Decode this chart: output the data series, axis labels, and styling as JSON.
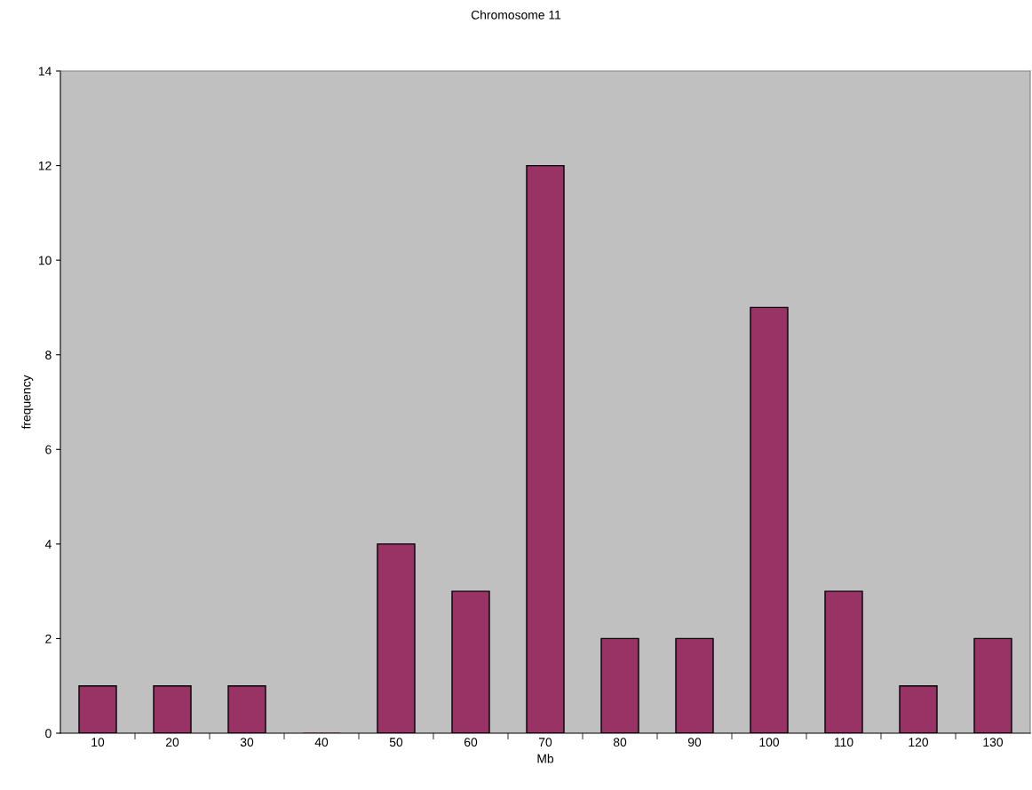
{
  "chart_data": {
    "type": "bar",
    "title": "Chromosome 11",
    "xlabel": "Mb",
    "ylabel": "frequency",
    "categories": [
      "10",
      "20",
      "30",
      "40",
      "50",
      "60",
      "70",
      "80",
      "90",
      "100",
      "110",
      "120",
      "130"
    ],
    "values": [
      1,
      1,
      1,
      0,
      4,
      3,
      12,
      2,
      2,
      9,
      3,
      1,
      2
    ],
    "color": "#993366",
    "ylim": [
      0,
      14
    ],
    "yticks": [
      0,
      2,
      4,
      6,
      8,
      10,
      12,
      14
    ],
    "grid": false,
    "legend": false
  }
}
